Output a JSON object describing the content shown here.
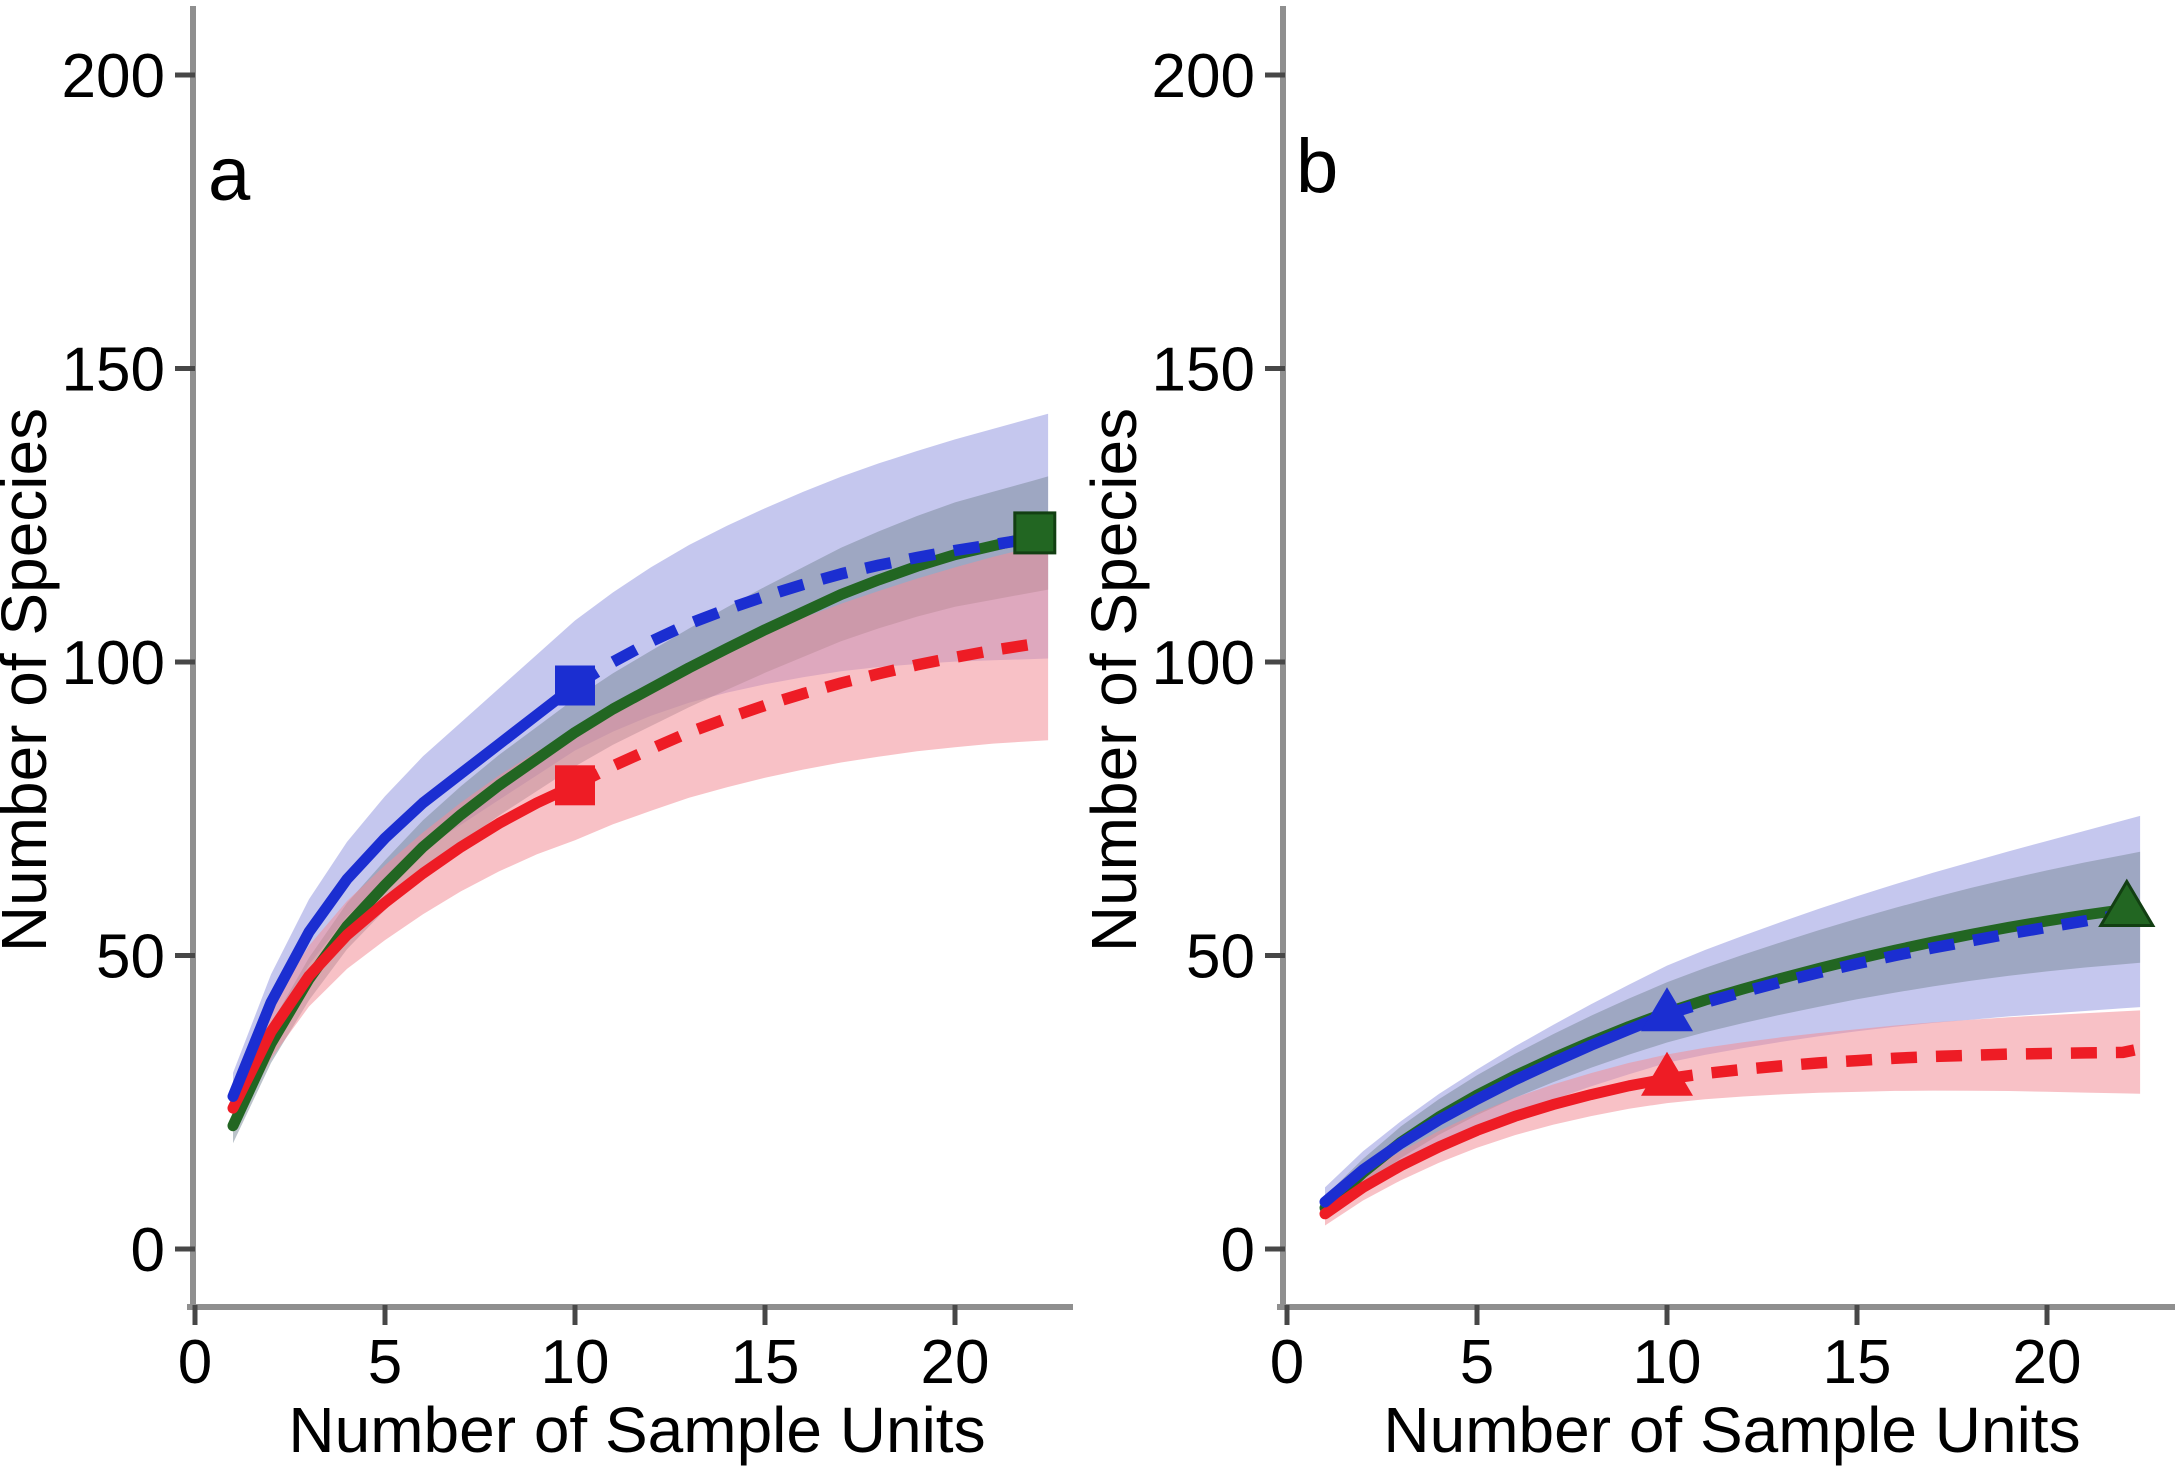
{
  "figure": {
    "description": "Two-panel species accumulation (rarefaction and extrapolation) curves with shaded confidence bands",
    "background": "#ffffff",
    "axis_color": "#8f8f8f",
    "tick_color": "#474747"
  },
  "chart_data": [
    {
      "panel_label": "a",
      "type": "line",
      "xlabel": "Number of Sample Units",
      "ylabel": "Number of Species",
      "xticks": [
        0,
        5,
        10,
        15,
        20
      ],
      "yticks": [
        0,
        50,
        100,
        150,
        200
      ],
      "xlim": [
        0,
        23.2
      ],
      "ylim": [
        0,
        212
      ],
      "grid": false,
      "legend": "none",
      "marker_shape": "square",
      "x_grid": [
        1,
        2,
        3,
        4,
        5,
        6,
        7,
        8,
        9,
        10,
        11,
        12,
        13,
        14,
        15,
        16,
        17,
        18,
        19,
        20,
        21,
        22
      ],
      "band_end_x": 22.45,
      "series": [
        {
          "name": "blue",
          "color": "#1b2ed1",
          "band_color": "rgba(143,147,222,0.52)",
          "y": [
            26,
            42,
            54,
            63,
            70,
            76,
            81,
            86,
            91,
            96,
            100,
            103.5,
            106.5,
            109,
            111.2,
            113.2,
            115,
            116.5,
            117.8,
            119,
            120,
            121
          ],
          "solid_until": 10,
          "marker": {
            "x": 10,
            "y": 96
          },
          "band_halfwidth_start": 4,
          "band_halfwidth_end": 20.5
        },
        {
          "name": "green",
          "color": "#226622",
          "band_color": "rgba(120,135,150,0.50)",
          "y": [
            21,
            35,
            46,
            55,
            62,
            68.5,
            74,
            79,
            83.5,
            88,
            92,
            95.5,
            99,
            102.3,
            105.5,
            108.5,
            111.5,
            114,
            116.3,
            118.3,
            119.8,
            121.3
          ],
          "solid_until": 22,
          "marker": {
            "x": 22.1,
            "y": 122
          },
          "band_halfwidth_start": 3,
          "band_halfwidth_end": 9.5
        },
        {
          "name": "red",
          "color": "#ee1c25",
          "band_color": "rgba(242,142,152,0.55)",
          "y": [
            24,
            37,
            46.5,
            53.5,
            59,
            64,
            68.5,
            72.5,
            76,
            79,
            82.3,
            85.2,
            88,
            90.4,
            92.6,
            94.6,
            96.4,
            98,
            99.5,
            100.8,
            102,
            103
          ],
          "solid_until": 10,
          "marker": {
            "x": 10,
            "y": 79
          },
          "tail": {
            "x": 22.3,
            "y": 103.2
          },
          "band_halfwidth_start": 4,
          "band_halfwidth_end": 16.5
        }
      ]
    },
    {
      "panel_label": "b",
      "type": "line",
      "xlabel": "Number of Sample Units",
      "ylabel": "Number of Species",
      "xticks": [
        0,
        5,
        10,
        15,
        20
      ],
      "yticks": [
        0,
        50,
        100,
        150,
        200
      ],
      "xlim": [
        0,
        23.4
      ],
      "ylim": [
        0,
        212
      ],
      "grid": false,
      "legend": "none",
      "marker_shape": "triangle",
      "x_grid": [
        1,
        2,
        3,
        4,
        5,
        6,
        7,
        8,
        9,
        10,
        11,
        12,
        13,
        14,
        15,
        16,
        17,
        18,
        19,
        20,
        21,
        22
      ],
      "band_end_x": 22.45,
      "series": [
        {
          "name": "blue",
          "color": "#1b2ed1",
          "band_color": "rgba(143,147,222,0.52)",
          "y": [
            8,
            13.5,
            18,
            22,
            25.5,
            28.8,
            31.8,
            34.7,
            37.4,
            40,
            42,
            43.8,
            45.5,
            47.1,
            48.6,
            50,
            51.3,
            52.5,
            53.7,
            54.8,
            55.9,
            57
          ],
          "solid_until": 10,
          "marker": {
            "x": 10,
            "y": 40
          },
          "band_halfwidth_start": 2.5,
          "band_halfwidth_end": 16
        },
        {
          "name": "green",
          "color": "#226622",
          "band_color": "rgba(120,135,150,0.50)",
          "y": [
            7,
            13,
            18.2,
            22.5,
            26.2,
            29.5,
            32.5,
            35.3,
            37.9,
            40.3,
            42.4,
            44.3,
            46.1,
            47.8,
            49.4,
            50.9,
            52.3,
            53.6,
            54.8,
            55.9,
            56.9,
            57.8
          ],
          "solid_until": 22,
          "marker": {
            "x": 22.1,
            "y": 58
          },
          "band_halfwidth_start": 2,
          "band_halfwidth_end": 9.3
        },
        {
          "name": "red",
          "color": "#ee1c25",
          "band_color": "rgba(242,142,152,0.55)",
          "y": [
            6,
            10.5,
            14.2,
            17.4,
            20.2,
            22.6,
            24.6,
            26.3,
            27.8,
            29,
            29.9,
            30.6,
            31.2,
            31.7,
            32.1,
            32.5,
            32.8,
            33,
            33.2,
            33.3,
            33.4,
            33.5
          ],
          "solid_until": 10,
          "marker": {
            "x": 10,
            "y": 29
          },
          "tail": {
            "x": 22.3,
            "y": 33.9
          },
          "band_halfwidth_start": 2,
          "band_halfwidth_end": 7
        }
      ]
    }
  ]
}
